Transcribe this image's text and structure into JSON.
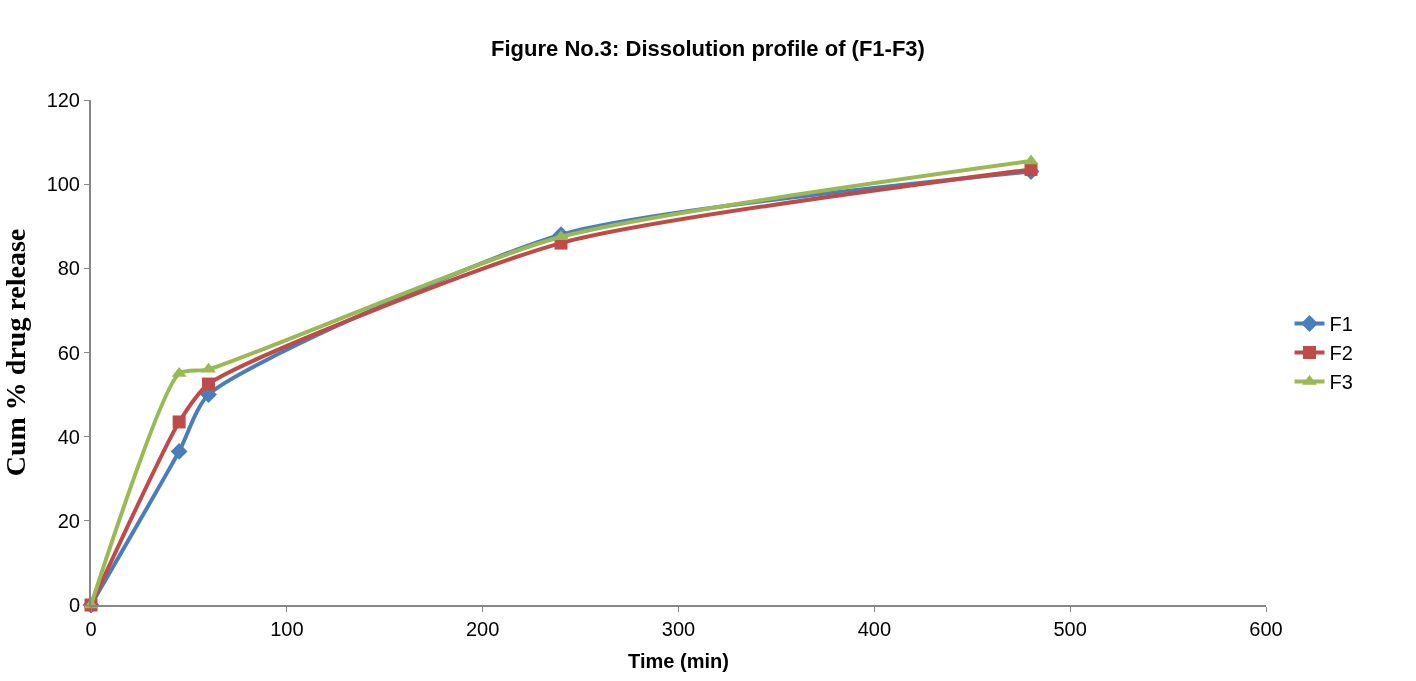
{
  "chart_data": {
    "type": "line",
    "title": "Figure No.3: Dissolution profile of (F1-F3)",
    "xlabel": "Time (min)",
    "ylabel": "Cum % drug release",
    "x": [
      0,
      45,
      60,
      240,
      480
    ],
    "series": [
      {
        "name": "F1",
        "color": "#4a7ebb",
        "values": [
          0,
          36.5,
          50,
          88,
          103
        ],
        "marker": "diamond"
      },
      {
        "name": "F2",
        "color": "#be4b48",
        "values": [
          0,
          43.5,
          52.5,
          86,
          103.5
        ],
        "marker": "square"
      },
      {
        "name": "F3",
        "color": "#98b954",
        "values": [
          0,
          55,
          56,
          87.5,
          105.5
        ],
        "marker": "triangle"
      }
    ],
    "xlim": [
      0,
      600
    ],
    "xticks": [
      0,
      100,
      200,
      300,
      400,
      500,
      600
    ],
    "ylim": [
      0,
      120
    ],
    "yticks": [
      0,
      20,
      40,
      60,
      80,
      100,
      120
    ],
    "legend": "right",
    "line_style": "solid"
  }
}
